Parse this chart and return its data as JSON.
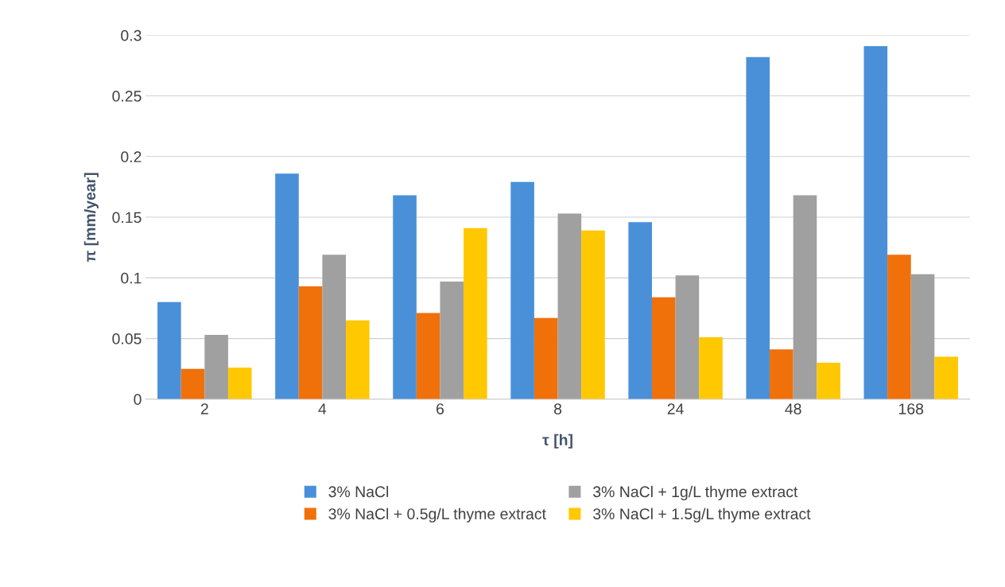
{
  "chart_data": {
    "type": "bar",
    "xlabel": "τ [h]",
    "ylabel": "π [mm/year]",
    "categories": [
      "2",
      "4",
      "6",
      "8",
      "24",
      "48",
      "168"
    ],
    "series": [
      {
        "name": "3% NaCl",
        "color": "#4a90d9",
        "values": [
          0.08,
          0.186,
          0.168,
          0.179,
          0.146,
          0.282,
          0.291
        ]
      },
      {
        "name": "3% NaCl + 0.5g/L thyme extract",
        "color": "#f0700a",
        "values": [
          0.025,
          0.093,
          0.071,
          0.067,
          0.084,
          0.041,
          0.119
        ]
      },
      {
        "name": "3% NaCl + 1g/L thyme extract",
        "color": "#a0a0a0",
        "values": [
          0.053,
          0.119,
          0.097,
          0.153,
          0.102,
          0.168,
          0.103
        ]
      },
      {
        "name": "3% NaCl + 1.5g/L thyme extract",
        "color": "#ffc800",
        "values": [
          0.026,
          0.065,
          0.141,
          0.139,
          0.051,
          0.03,
          0.035
        ]
      }
    ],
    "ylim": [
      0,
      0.3
    ],
    "yticks": [
      0,
      0.05,
      0.1,
      0.15,
      0.2,
      0.25,
      0.3
    ],
    "grid": "y",
    "legend": "bottom"
  }
}
